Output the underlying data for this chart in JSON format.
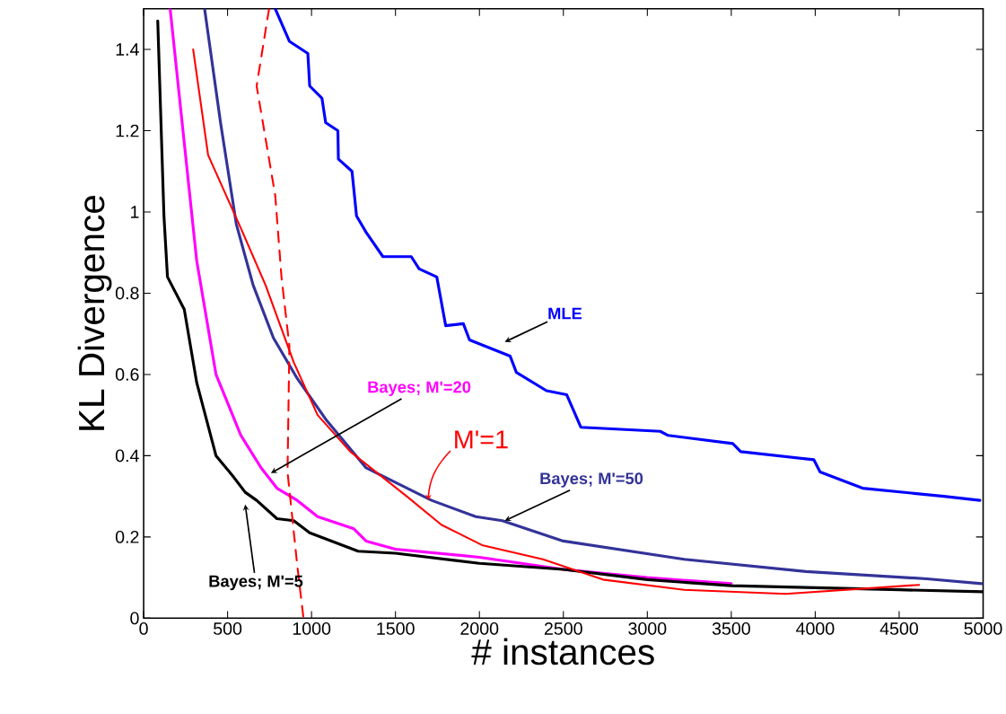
{
  "chart_data": {
    "type": "line",
    "xlabel": "# instances",
    "ylabel": "KL Divergence",
    "xlim": [
      0,
      5000
    ],
    "ylim": [
      0,
      1.5
    ],
    "xticks": [
      0,
      500,
      1000,
      1500,
      2000,
      2500,
      3000,
      3500,
      4000,
      4500,
      5000
    ],
    "yticks": [
      0,
      0.2,
      0.4,
      0.6,
      0.8,
      1,
      1.2,
      1.4
    ],
    "series": [
      {
        "name": "MLE",
        "color": "#0000ff",
        "x": [
          784,
          868,
          978,
          989,
          1062,
          1084,
          1157,
          1160,
          1241,
          1268,
          1325,
          1425,
          1594,
          1641,
          1746,
          1799,
          1904,
          1941,
          2183,
          2220,
          2399,
          2520,
          2604,
          3077,
          3124,
          3509,
          3556,
          3992,
          4029,
          4282,
          4766,
          4981
        ],
        "values": [
          1.5,
          1.42,
          1.39,
          1.31,
          1.28,
          1.22,
          1.2,
          1.13,
          1.1,
          0.99,
          0.95,
          0.89,
          0.89,
          0.86,
          0.84,
          0.72,
          0.725,
          0.685,
          0.645,
          0.605,
          0.56,
          0.55,
          0.47,
          0.46,
          0.45,
          0.43,
          0.41,
          0.39,
          0.36,
          0.32,
          0.3,
          0.29
        ]
      },
      {
        "name": "Bayes; M'=50",
        "color": "#333399",
        "x": [
          363,
          458,
          552,
          652,
          773,
          915,
          1084,
          1325,
          1715,
          1978,
          2136,
          2499,
          3219,
          3945,
          4666,
          4992
        ],
        "values": [
          1.5,
          1.22,
          0.97,
          0.82,
          0.69,
          0.59,
          0.49,
          0.37,
          0.29,
          0.25,
          0.24,
          0.19,
          0.145,
          0.115,
          0.097,
          0.085
        ]
      },
      {
        "name": "Bayes; M'=20",
        "color": "#ff00ff",
        "x": [
          158,
          242,
          316,
          431,
          579,
          700,
          794,
          915,
          1036,
          1252,
          1325,
          1500,
          2000,
          2500,
          3000,
          3500
        ],
        "values": [
          1.5,
          1.17,
          0.88,
          0.6,
          0.45,
          0.37,
          0.32,
          0.29,
          0.25,
          0.22,
          0.19,
          0.17,
          0.15,
          0.12,
          0.1,
          0.085
        ]
      },
      {
        "name": "Bayes; M'=5",
        "color": "#000000",
        "x": [
          84,
          121,
          142,
          242,
          316,
          431,
          531,
          605,
          673,
          794,
          894,
          989,
          1278,
          1500,
          2000,
          2500,
          3000,
          3500,
          4000,
          4500,
          5000
        ],
        "values": [
          1.47,
          0.99,
          0.84,
          0.76,
          0.58,
          0.4,
          0.35,
          0.31,
          0.29,
          0.245,
          0.24,
          0.21,
          0.165,
          0.16,
          0.135,
          0.12,
          0.095,
          0.08,
          0.075,
          0.07,
          0.065
        ]
      },
      {
        "name": "M'=1",
        "color": "#ff0000",
        "x": [
          295,
          384,
          579,
          726,
          894,
          1036,
          1231,
          1567,
          1773,
          2015,
          2378,
          2736,
          3219,
          3824,
          4619
        ],
        "values": [
          1.4,
          1.14,
          0.96,
          0.82,
          0.63,
          0.5,
          0.41,
          0.3,
          0.23,
          0.18,
          0.145,
          0.095,
          0.07,
          0.06,
          0.082
        ]
      },
      {
        "color": "#ff0000",
        "line_style": "dashed",
        "x": [
          747,
          673,
          784,
          821,
          868,
          857,
          915,
          952
        ],
        "values": [
          1.5,
          1.31,
          1.04,
          0.84,
          0.67,
          0.36,
          0.13,
          0
        ]
      }
    ]
  }
}
